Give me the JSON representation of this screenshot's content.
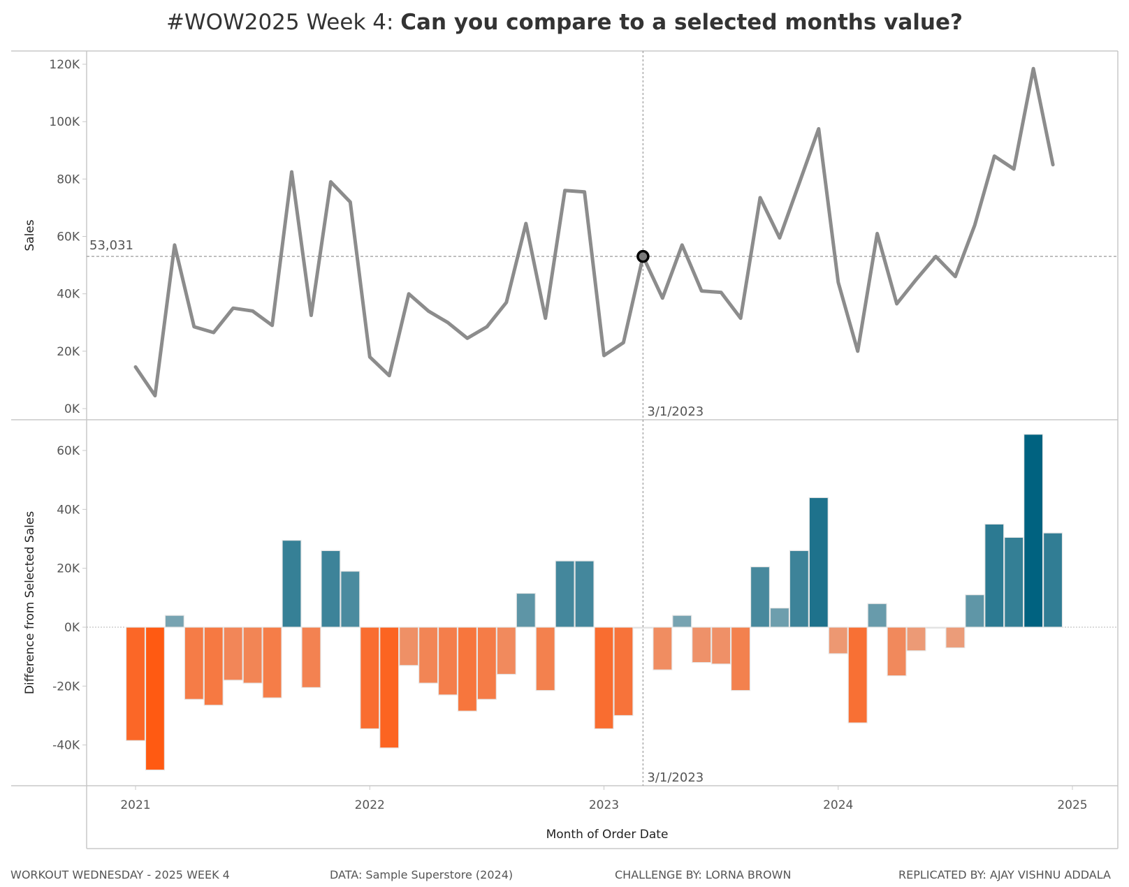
{
  "title": {
    "prefix": "#WOW2025 Week 4: ",
    "main": "Can you compare to a selected months value?"
  },
  "footer": {
    "left": "WORKOUT WEDNESDAY - 2025 WEEK 4",
    "data": "DATA: Sample Superstore (2024)",
    "challenge": "CHALLENGE BY: LORNA BROWN",
    "replicated": "REPLICATED BY: AJAY VISHNU ADDALA"
  },
  "chart_data": [
    {
      "type": "line",
      "ylabel": "Sales",
      "ylim": [
        0,
        120000
      ],
      "yticks": [
        0,
        20000,
        40000,
        60000,
        80000,
        100000,
        120000
      ],
      "ytick_labels": [
        "0K",
        "20K",
        "40K",
        "60K",
        "80K",
        "100K",
        "120K"
      ],
      "grid": false,
      "line_color": "#8c8c8c",
      "selected_date": "3/1/2023",
      "selected_value_label": "53,031",
      "selected_value": 53031,
      "x": [
        "2021-01",
        "2021-02",
        "2021-03",
        "2021-04",
        "2021-05",
        "2021-06",
        "2021-07",
        "2021-08",
        "2021-09",
        "2021-10",
        "2021-11",
        "2021-12",
        "2022-01",
        "2022-02",
        "2022-03",
        "2022-04",
        "2022-05",
        "2022-06",
        "2022-07",
        "2022-08",
        "2022-09",
        "2022-10",
        "2022-11",
        "2022-12",
        "2023-01",
        "2023-02",
        "2023-03",
        "2023-04",
        "2023-05",
        "2023-06",
        "2023-07",
        "2023-08",
        "2023-09",
        "2023-10",
        "2023-11",
        "2023-12",
        "2024-01",
        "2024-02",
        "2024-03",
        "2024-04",
        "2024-05",
        "2024-06",
        "2024-07",
        "2024-08",
        "2024-09",
        "2024-10",
        "2024-11",
        "2024-12"
      ],
      "values": [
        14500,
        4500,
        57000,
        28500,
        26500,
        35000,
        34000,
        29000,
        82500,
        32500,
        79000,
        72000,
        18000,
        11500,
        40000,
        34000,
        30000,
        24500,
        28500,
        37000,
        64500,
        31500,
        76000,
        75500,
        18500,
        23000,
        53031,
        38500,
        57000,
        41000,
        40500,
        31500,
        73500,
        59500,
        78500,
        97500,
        44000,
        20000,
        61000,
        36500,
        45000,
        53000,
        46000,
        64000,
        88000,
        83500,
        118500,
        85000
      ]
    },
    {
      "type": "bar",
      "ylabel": "Difference from Selected Sales",
      "xlabel": "Month of Order Date",
      "ylim": [
        -50000,
        70000
      ],
      "yticks": [
        -40000,
        -20000,
        0,
        20000,
        40000,
        60000
      ],
      "ytick_labels": [
        "-40K",
        "-20K",
        "0K",
        "20K",
        "40K",
        "60K"
      ],
      "xticks": [
        "2021",
        "2022",
        "2023",
        "2024",
        "2025"
      ],
      "selected_date": "3/1/2023",
      "color_positive": "#006280",
      "color_negative": "#ff5a12",
      "color_neutral": "#d9d9d9",
      "values": [
        -38500,
        -48500,
        4000,
        -24500,
        -26500,
        -18000,
        -19000,
        -24000,
        29500,
        -20500,
        26000,
        19000,
        -34500,
        -41000,
        -13000,
        -19000,
        -23000,
        -28500,
        -24500,
        -16000,
        11500,
        -21500,
        22500,
        22500,
        -34500,
        -30000,
        0,
        -14500,
        4000,
        -12000,
        -12500,
        -21500,
        20500,
        6500,
        26000,
        44000,
        -9000,
        -32500,
        8000,
        -16500,
        -8000,
        0,
        -7000,
        11000,
        35000,
        30500,
        65500,
        32000
      ]
    }
  ]
}
